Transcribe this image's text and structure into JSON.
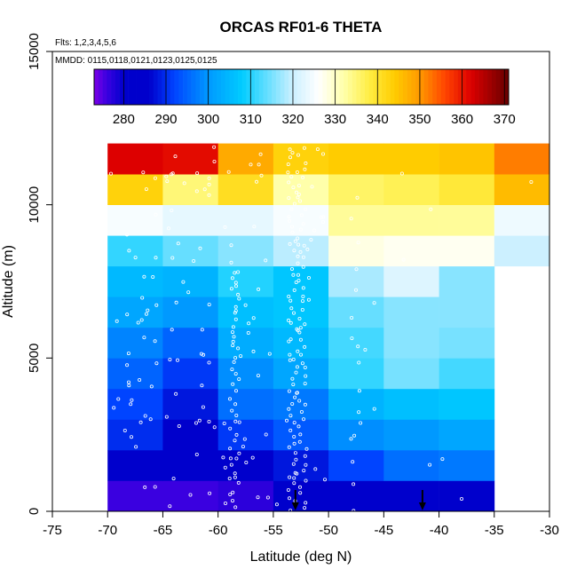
{
  "chart_data": {
    "type": "heatmap",
    "title": "ORCAS RF01-6 THETA",
    "flights_note": "Flts: 1,2,3,4,5,6",
    "dates_note": "MMDD: 0115,0118,0121,0123,0125,0125",
    "xlabel": "Latitude (deg N)",
    "ylabel": "Altitude (m)",
    "xlim": [
      -75,
      -30
    ],
    "ylim": [
      0,
      15000
    ],
    "x_ticks": [
      "-75",
      "-70",
      "-65",
      "-60",
      "-55",
      "-50",
      "-45",
      "-40",
      "-35",
      "-30"
    ],
    "y_ticks": [
      "0",
      "5000",
      "10000",
      "15000"
    ],
    "colorbar": {
      "range": [
        273,
        371
      ],
      "tick_values": [
        280,
        290,
        300,
        310,
        320,
        330,
        340,
        350,
        360,
        370
      ],
      "tick_labels": [
        "280",
        "290",
        "300",
        "310",
        "320",
        "330",
        "340",
        "350",
        "360",
        "370"
      ],
      "stops": [
        [
          273,
          "#7b00e6"
        ],
        [
          276,
          "#3a00e0"
        ],
        [
          280,
          "#0000cc"
        ],
        [
          286,
          "#0000cc"
        ],
        [
          292,
          "#0044ff"
        ],
        [
          300,
          "#0099ff"
        ],
        [
          308,
          "#00ccff"
        ],
        [
          320,
          "#ccf0ff"
        ],
        [
          326,
          "#ffffff"
        ],
        [
          332,
          "#ffffaa"
        ],
        [
          338,
          "#ffee44"
        ],
        [
          344,
          "#ffcc00"
        ],
        [
          350,
          "#ff9900"
        ],
        [
          356,
          "#ff4400"
        ],
        [
          362,
          "#dd0000"
        ],
        [
          371,
          "#660000"
        ]
      ]
    },
    "grid": {
      "x_edges": [
        -70,
        -65,
        -60,
        -55,
        -50,
        -45,
        -40,
        -35,
        -30
      ],
      "y_edges": [
        0,
        1000,
        2000,
        3000,
        4000,
        5000,
        6000,
        7000,
        8000,
        9000,
        10000,
        11000,
        12000
      ],
      "values": [
        [
          276,
          276,
          277,
          283,
          285,
          285,
          286,
          null
        ],
        [
          284,
          282,
          284,
          288,
          292,
          296,
          297,
          null
        ],
        [
          290,
          285,
          291,
          294,
          299,
          300,
          302,
          null
        ],
        [
          292,
          288,
          296,
          297,
          304,
          306,
          307,
          null
        ],
        [
          295,
          291,
          299,
          302,
          311,
          315,
          312,
          null
        ],
        [
          298,
          295,
          303,
          305,
          312,
          316,
          315,
          null
        ],
        [
          302,
          300,
          306,
          307,
          314,
          316,
          316,
          null
        ],
        [
          305,
          304,
          310,
          307,
          318,
          322,
          316,
          null
        ],
        [
          311,
          314,
          316,
          319,
          328,
          327,
          327,
          320
        ],
        [
          325,
          323,
          323,
          325,
          333,
          333,
          333,
          324
        ],
        [
          343,
          335,
          341,
          332,
          336,
          337,
          339,
          346
        ],
        [
          362,
          361,
          348,
          343,
          344,
          344,
          345,
          352
        ]
      ]
    },
    "arrows_at_latitude": [
      -53,
      -41.5
    ]
  }
}
